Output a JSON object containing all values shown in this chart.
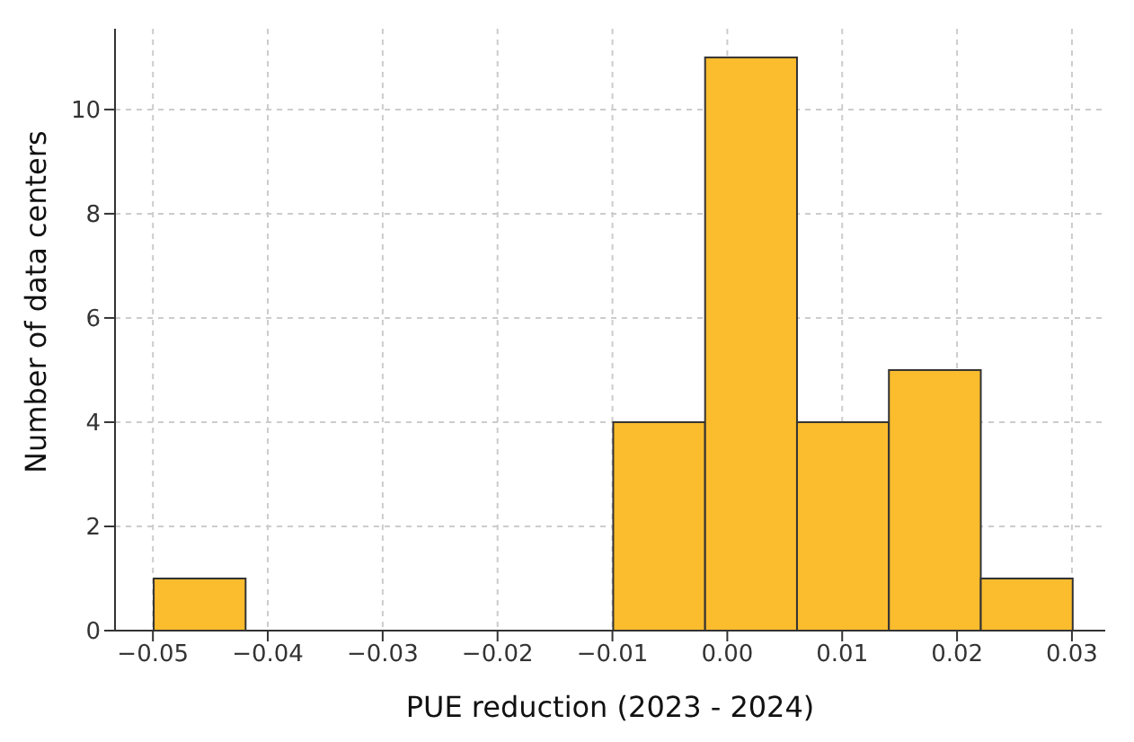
{
  "chart_data": {
    "type": "histogram",
    "xlabel": "PUE reduction (2023 - 2024)",
    "ylabel": "Number of data centers",
    "bins": [
      -0.05,
      -0.042,
      -0.034,
      -0.026,
      -0.018,
      -0.01,
      -0.002,
      0.006,
      0.014,
      0.022,
      0.03
    ],
    "values": [
      1,
      0,
      0,
      0,
      0,
      4,
      11,
      4,
      5,
      1
    ],
    "color": "#fbbc2e",
    "xlim": [
      -0.0533,
      0.0329
    ],
    "xticks": [
      {
        "value": -0.05,
        "label": "−0.05"
      },
      {
        "value": -0.04,
        "label": "−0.04"
      },
      {
        "value": -0.03,
        "label": "−0.03"
      },
      {
        "value": -0.02,
        "label": "−0.02"
      },
      {
        "value": -0.01,
        "label": "−0.01"
      },
      {
        "value": 0,
        "label": "0.00"
      },
      {
        "value": 0.01,
        "label": "0.01"
      },
      {
        "value": 0.02,
        "label": "0.02"
      },
      {
        "value": 0.03,
        "label": "0.03"
      }
    ],
    "ylim": [
      0,
      11.55
    ],
    "yticks": [
      0,
      2,
      4,
      6,
      8,
      10
    ],
    "grid": true
  }
}
